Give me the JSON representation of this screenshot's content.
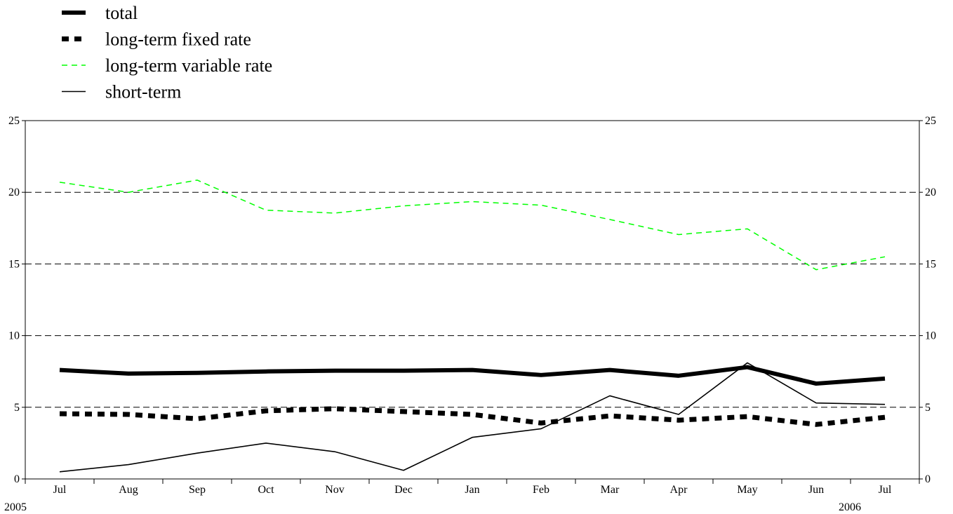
{
  "chart_data": {
    "type": "line",
    "categories": [
      "Jul",
      "Aug",
      "Sep",
      "Oct",
      "Nov",
      "Dec",
      "Jan",
      "Feb",
      "Mar",
      "Apr",
      "May",
      "Jun",
      "Jul"
    ],
    "year_labels": [
      "2005",
      "2006"
    ],
    "ylim": [
      0,
      25
    ],
    "yticks": [
      0,
      5,
      10,
      15,
      20,
      25
    ],
    "grid": true,
    "legend_position": "top-left",
    "series": [
      {
        "name": "total",
        "color": "#000000",
        "style": "thick-solid",
        "values": [
          7.6,
          7.35,
          7.4,
          7.5,
          7.55,
          7.55,
          7.6,
          7.25,
          7.6,
          7.2,
          7.8,
          6.65,
          7.0
        ]
      },
      {
        "name": "long-term fixed rate",
        "color": "#000000",
        "style": "thick-dotted",
        "values": [
          4.55,
          4.5,
          4.2,
          4.75,
          4.9,
          4.7,
          4.5,
          3.9,
          4.4,
          4.1,
          4.35,
          3.8,
          4.3
        ]
      },
      {
        "name": "long-term variable rate",
        "color": "#00ff00",
        "style": "thin-dashed",
        "values": [
          20.7,
          20.0,
          20.85,
          18.75,
          18.55,
          19.05,
          19.35,
          19.1,
          18.1,
          17.05,
          17.45,
          14.6,
          15.5
        ]
      },
      {
        "name": "short-term",
        "color": "#000000",
        "style": "thin-solid",
        "values": [
          0.5,
          1.0,
          1.8,
          2.5,
          1.9,
          0.6,
          2.9,
          3.5,
          5.8,
          4.5,
          8.1,
          5.3,
          5.2
        ]
      }
    ]
  }
}
